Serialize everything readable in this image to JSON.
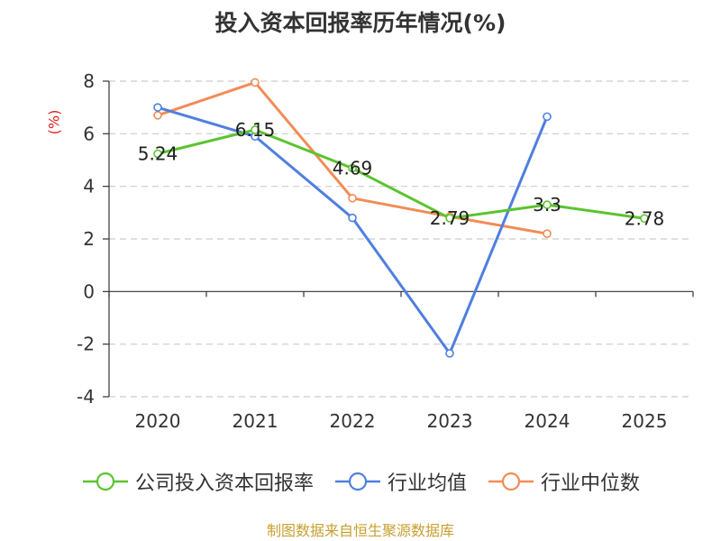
{
  "chart_data": {
    "type": "line",
    "title": "投入资本回报率历年情况(%)",
    "ylabel": "(%)",
    "categories": [
      "2020",
      "2021",
      "2022",
      "2023",
      "2024",
      "2025"
    ],
    "ylim": [
      -4,
      8
    ],
    "yticks": [
      "8",
      "6",
      "4",
      "2",
      "0",
      "-2",
      "-4"
    ],
    "ytick_values": [
      8,
      6,
      4,
      2,
      0,
      -2,
      -4
    ],
    "grid": true,
    "legend_position": "bottom",
    "series": [
      {
        "name": "公司投入资本回报率",
        "color": "#5ac42e",
        "values": [
          5.24,
          6.15,
          4.69,
          2.79,
          3.3,
          2.78
        ],
        "labels": [
          "5.24",
          "6.15",
          "4.69",
          "2.79",
          "3.3",
          "2.78"
        ]
      },
      {
        "name": "行业均值",
        "color": "#4f7fe0",
        "values": [
          7.0,
          5.9,
          2.8,
          -2.35,
          6.65,
          null
        ]
      },
      {
        "name": "行业中位数",
        "color": "#f28c55",
        "values": [
          6.7,
          7.95,
          3.55,
          2.85,
          2.2,
          null
        ]
      }
    ]
  },
  "source": "制图数据来自恒生聚源数据库"
}
